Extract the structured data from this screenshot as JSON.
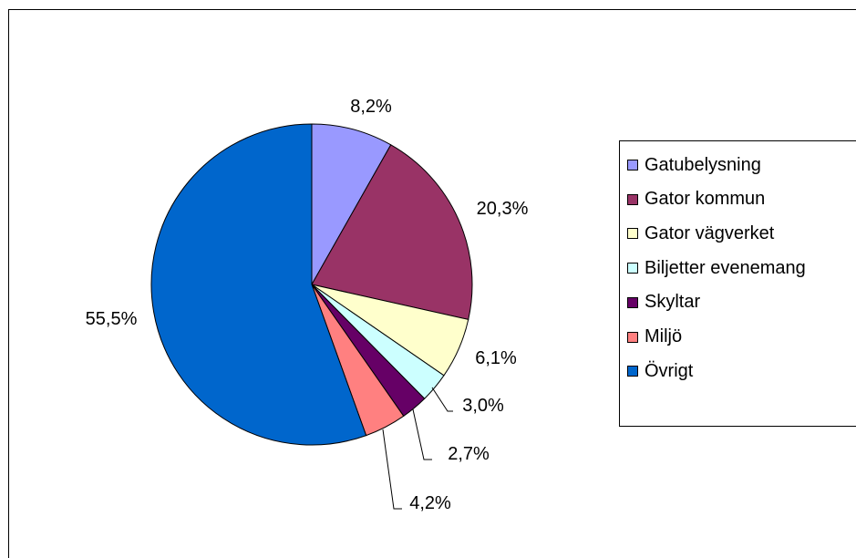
{
  "chart_data": {
    "type": "pie",
    "title": "",
    "start_angle_deg": 90,
    "direction": "clockwise",
    "legend_position": "right",
    "slices": [
      {
        "name": "Gatubelysning",
        "value": 8.2,
        "label": "8,2%",
        "color": "#9999FF"
      },
      {
        "name": "Gator kommun",
        "value": 20.3,
        "label": "20,3%",
        "color": "#993366"
      },
      {
        "name": "Gator vägverket",
        "value": 6.1,
        "label": "6,1%",
        "color": "#FFFFCC"
      },
      {
        "name": "Biljetter evenemang",
        "value": 3.0,
        "label": "3,0%",
        "color": "#CCFFFF"
      },
      {
        "name": "Skyltar",
        "value": 2.7,
        "label": "2,7%",
        "color": "#660066"
      },
      {
        "name": "Miljö",
        "value": 4.2,
        "label": "4,2%",
        "color": "#FF8080"
      },
      {
        "name": "Övrigt",
        "value": 55.5,
        "label": "55,5%",
        "color": "#0066CC"
      }
    ]
  }
}
